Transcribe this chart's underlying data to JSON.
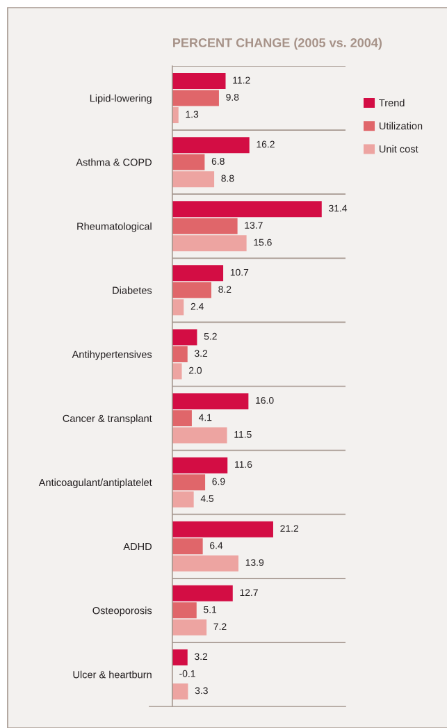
{
  "chart_data": {
    "type": "bar",
    "orientation": "horizontal",
    "title": "PERCENT CHANGE (2005 vs. 2004)",
    "categories": [
      "Lipid-lowering",
      "Asthma & COPD",
      "Rheumatological",
      "Diabetes",
      "Antihypertensives",
      "Cancer & transplant",
      "Anticoagulant/antiplatelet",
      "ADHD",
      "Osteoporosis",
      "Ulcer & heartburn"
    ],
    "series": [
      {
        "name": "Trend",
        "color": "#d30d44",
        "values": [
          11.2,
          16.2,
          31.4,
          10.7,
          5.2,
          16.0,
          11.6,
          21.2,
          12.7,
          3.2
        ],
        "value_labels": [
          "11.2",
          "16.2",
          "31.4",
          "10.7",
          "5.2",
          "16.0",
          "11.6",
          "21.2",
          "12.7",
          "3.2"
        ]
      },
      {
        "name": "Utilization",
        "color": "#e0666a",
        "values": [
          9.8,
          6.8,
          13.7,
          8.2,
          3.2,
          4.1,
          6.9,
          6.4,
          5.1,
          -0.1
        ],
        "value_labels": [
          "9.8",
          "6.8",
          "13.7",
          "8.2",
          "3.2",
          "4.1",
          "6.9",
          "6.4",
          "5.1",
          "-0.1"
        ]
      },
      {
        "name": "Unit cost",
        "color": "#eda4a1",
        "values": [
          1.3,
          8.8,
          15.6,
          2.4,
          2.0,
          11.5,
          4.5,
          13.9,
          7.2,
          3.3
        ],
        "value_labels": [
          "1.3",
          "8.8",
          "15.6",
          "2.4",
          "2.0",
          "11.5",
          "4.5",
          "13.9",
          "7.2",
          "3.3"
        ]
      }
    ],
    "xlim": [
      -4.8,
      36.4
    ],
    "grid": "y",
    "legend": "top right",
    "tick_labels": "y"
  }
}
